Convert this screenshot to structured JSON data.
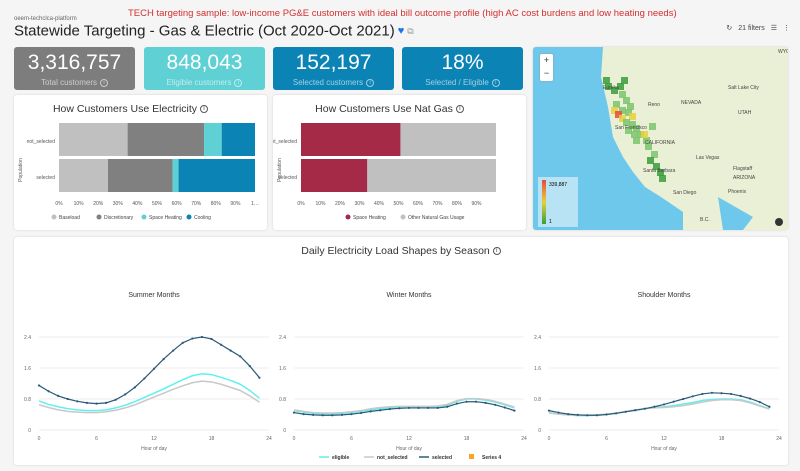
{
  "header": {
    "breadcrumb": "oeem-techclca-platform",
    "note": "TECH targeting sample: low-income PG&E customers with ideal bill outcome profile (high AC cost burdens and low heating needs)",
    "title": "Statewide Targeting - Gas & Electric (Oct 2020-Oct 2021)",
    "filters": "21 filters"
  },
  "kpis": [
    {
      "value": "3,316,757",
      "label": "Total customers",
      "color": "#7d7d7d"
    },
    {
      "value": "848,043",
      "label": "Eligible customers",
      "color": "#5fd0d4"
    },
    {
      "value": "152,197",
      "label": "Selected customers",
      "color": "#0b84b5"
    },
    {
      "value": "18%",
      "label": "Selected / Eligible",
      "color": "#0b84b5"
    }
  ],
  "map": {
    "legend_max": "339,887",
    "legend_min": "1",
    "labels": [
      "Eureka",
      "Reno",
      "NEVADA",
      "Salt Lake City",
      "UTAH",
      "San Francisco",
      "CALIFORNIA",
      "Las Vegas",
      "Santa Barbara",
      "Flagstaff",
      "ARIZONA",
      "San Diego",
      "Phoenix",
      "B.C.",
      "WYOMI"
    ]
  },
  "chart_data": [
    {
      "type": "bar",
      "stacked": true,
      "orientation": "horizontal",
      "title": "How Customers Use Electricity",
      "ylabel": "Population",
      "categories": [
        "not_selected",
        "selected"
      ],
      "xticks": [
        "0%",
        "10%",
        "20%",
        "30%",
        "40%",
        "50%",
        "60%",
        "70%",
        "80%",
        "90%",
        "1…"
      ],
      "series": [
        {
          "name": "Baseload",
          "color": "#c0c0c0",
          "values": [
            35,
            25
          ]
        },
        {
          "name": "Discretionary",
          "color": "#808080",
          "values": [
            39,
            33
          ]
        },
        {
          "name": "Space Heating",
          "color": "#5fd0d4",
          "values": [
            9,
            3
          ]
        },
        {
          "name": "Cooling",
          "color": "#0b84b5",
          "values": [
            17,
            39
          ]
        }
      ]
    },
    {
      "type": "bar",
      "stacked": true,
      "orientation": "horizontal",
      "title": "How Customers Use Nat Gas",
      "ylabel": "Population",
      "categories": [
        "not_selected",
        "selected"
      ],
      "xticks": [
        "0%",
        "10%",
        "20%",
        "30%",
        "40%",
        "50%",
        "60%",
        "70%",
        "80%",
        "90%"
      ],
      "series": [
        {
          "name": "Space Heating",
          "color": "#a52a48",
          "values": [
            51,
            34
          ]
        },
        {
          "name": "Other Natural Gas Usage",
          "color": "#c0c0c0",
          "values": [
            49,
            66
          ]
        }
      ]
    },
    {
      "type": "line",
      "title": "Daily Electricity Load Shapes by Season",
      "panels": [
        {
          "title": "Summer Months",
          "xlabel": "Hour of day",
          "xticks": [
            0,
            6,
            12,
            18,
            24
          ],
          "yticks": [
            "0",
            "0.8",
            "1.6",
            "2.4"
          ],
          "ylim": [
            0,
            2.4
          ],
          "x": [
            0,
            1,
            2,
            3,
            4,
            5,
            6,
            7,
            8,
            9,
            10,
            11,
            12,
            13,
            14,
            15,
            16,
            17,
            18,
            19,
            20,
            21,
            22,
            23
          ],
          "series": [
            {
              "name": "eligible",
              "values": [
                0.75,
                0.66,
                0.6,
                0.55,
                0.52,
                0.5,
                0.5,
                0.52,
                0.57,
                0.64,
                0.73,
                0.84,
                0.95,
                1.06,
                1.18,
                1.3,
                1.4,
                1.45,
                1.43,
                1.36,
                1.28,
                1.18,
                1.02,
                0.82
              ]
            },
            {
              "name": "not_selected",
              "values": [
                0.65,
                0.58,
                0.52,
                0.48,
                0.46,
                0.45,
                0.45,
                0.47,
                0.51,
                0.57,
                0.65,
                0.75,
                0.85,
                0.95,
                1.05,
                1.14,
                1.22,
                1.26,
                1.24,
                1.18,
                1.1,
                1.02,
                0.88,
                0.72
              ]
            },
            {
              "name": "selected",
              "values": [
                1.15,
                1.0,
                0.88,
                0.8,
                0.74,
                0.7,
                0.68,
                0.7,
                0.78,
                0.92,
                1.1,
                1.33,
                1.58,
                1.83,
                2.05,
                2.25,
                2.36,
                2.4,
                2.35,
                2.2,
                2.05,
                1.9,
                1.65,
                1.35
              ]
            }
          ]
        },
        {
          "title": "Winter Months",
          "xlabel": "Hour of day",
          "xticks": [
            0,
            6,
            12,
            18,
            24
          ],
          "yticks": [
            "0",
            "0.8",
            "1.6",
            "2.4"
          ],
          "ylim": [
            0,
            2.4
          ],
          "x": [
            0,
            1,
            2,
            3,
            4,
            5,
            6,
            7,
            8,
            9,
            10,
            11,
            12,
            13,
            14,
            15,
            16,
            17,
            18,
            19,
            20,
            21,
            22,
            23
          ],
          "series": [
            {
              "name": "eligible",
              "values": [
                0.5,
                0.46,
                0.43,
                0.42,
                0.42,
                0.43,
                0.45,
                0.48,
                0.52,
                0.55,
                0.57,
                0.58,
                0.59,
                0.59,
                0.59,
                0.6,
                0.64,
                0.74,
                0.8,
                0.8,
                0.77,
                0.72,
                0.65,
                0.57
              ]
            },
            {
              "name": "not_selected",
              "values": [
                0.52,
                0.48,
                0.45,
                0.44,
                0.44,
                0.45,
                0.47,
                0.5,
                0.55,
                0.58,
                0.6,
                0.61,
                0.61,
                0.61,
                0.61,
                0.62,
                0.66,
                0.76,
                0.81,
                0.81,
                0.79,
                0.74,
                0.67,
                0.59
              ]
            },
            {
              "name": "selected",
              "values": [
                0.45,
                0.41,
                0.39,
                0.38,
                0.38,
                0.39,
                0.41,
                0.44,
                0.48,
                0.51,
                0.54,
                0.56,
                0.57,
                0.57,
                0.57,
                0.57,
                0.6,
                0.68,
                0.73,
                0.73,
                0.7,
                0.65,
                0.58,
                0.5
              ]
            }
          ]
        },
        {
          "title": "Shoulder Months",
          "xlabel": "Hour of day",
          "xticks": [
            0,
            6,
            12,
            18,
            24
          ],
          "yticks": [
            "0",
            "0.8",
            "1.6",
            "2.4"
          ],
          "ylim": [
            0,
            2.4
          ],
          "x": [
            0,
            1,
            2,
            3,
            4,
            5,
            6,
            7,
            8,
            9,
            10,
            11,
            12,
            13,
            14,
            15,
            16,
            17,
            18,
            19,
            20,
            21,
            22,
            23
          ],
          "series": [
            {
              "name": "eligible",
              "values": [
                0.45,
                0.41,
                0.39,
                0.37,
                0.37,
                0.38,
                0.4,
                0.43,
                0.47,
                0.51,
                0.55,
                0.58,
                0.6,
                0.63,
                0.67,
                0.71,
                0.76,
                0.79,
                0.8,
                0.8,
                0.78,
                0.72,
                0.63,
                0.55
              ]
            },
            {
              "name": "not_selected",
              "values": [
                0.44,
                0.41,
                0.39,
                0.38,
                0.38,
                0.39,
                0.41,
                0.44,
                0.48,
                0.52,
                0.55,
                0.57,
                0.58,
                0.6,
                0.63,
                0.67,
                0.72,
                0.76,
                0.78,
                0.78,
                0.76,
                0.7,
                0.62,
                0.54
              ]
            },
            {
              "name": "selected",
              "values": [
                0.5,
                0.45,
                0.41,
                0.39,
                0.38,
                0.38,
                0.4,
                0.43,
                0.47,
                0.51,
                0.55,
                0.6,
                0.66,
                0.73,
                0.8,
                0.87,
                0.93,
                0.96,
                0.95,
                0.93,
                0.88,
                0.81,
                0.72,
                0.6
              ]
            }
          ]
        }
      ],
      "legend": [
        {
          "name": "eligible",
          "color": "#5ff0ee"
        },
        {
          "name": "not_selected",
          "color": "#c8c8c8"
        },
        {
          "name": "selected",
          "color": "#2a5a78"
        },
        {
          "name": "Series 4",
          "color": "#f5a623"
        }
      ]
    }
  ]
}
